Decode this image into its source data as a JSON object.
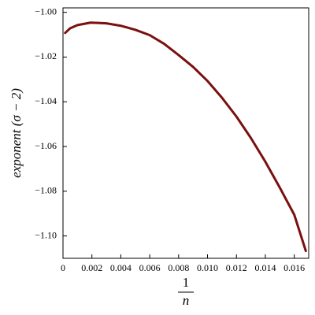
{
  "chart_data": {
    "type": "line",
    "xlabel_numerator": "1",
    "xlabel_denominator": "n",
    "ylabel": "exponent (σ − 2)",
    "x": [
      0.00015,
      0.0005,
      0.001,
      0.0019,
      0.003,
      0.004,
      0.005,
      0.006,
      0.007,
      0.008,
      0.009,
      0.01,
      0.011,
      0.012,
      0.013,
      0.014,
      0.015,
      0.016,
      0.0168
    ],
    "series": [
      {
        "color": "#7a1010",
        "values": [
          -1.0092,
          -1.0071,
          -1.0057,
          -1.0046,
          -1.0049,
          -1.006,
          -1.0078,
          -1.0102,
          -1.0141,
          -1.0191,
          -1.0244,
          -1.0307,
          -1.0382,
          -1.0466,
          -1.0562,
          -1.0668,
          -1.0784,
          -1.0905,
          -1.1067
        ]
      }
    ],
    "xlim": [
      0,
      0.017
    ],
    "ylim": [
      -1.11,
      -0.998
    ],
    "xticks": [
      0,
      0.002,
      0.004,
      0.006,
      0.008,
      {
        "value": 0.01,
        "label": "0.010"
      },
      0.012,
      0.014,
      0.016
    ],
    "yticks": [
      {
        "value": -1.0,
        "label": "−1.00"
      },
      {
        "value": -1.02,
        "label": "−1.02"
      },
      {
        "value": -1.04,
        "label": "−1.04"
      },
      {
        "value": -1.06,
        "label": "−1.06"
      },
      {
        "value": -1.08,
        "label": "−1.08"
      },
      {
        "value": -1.1,
        "label": "−1.10"
      }
    ]
  }
}
